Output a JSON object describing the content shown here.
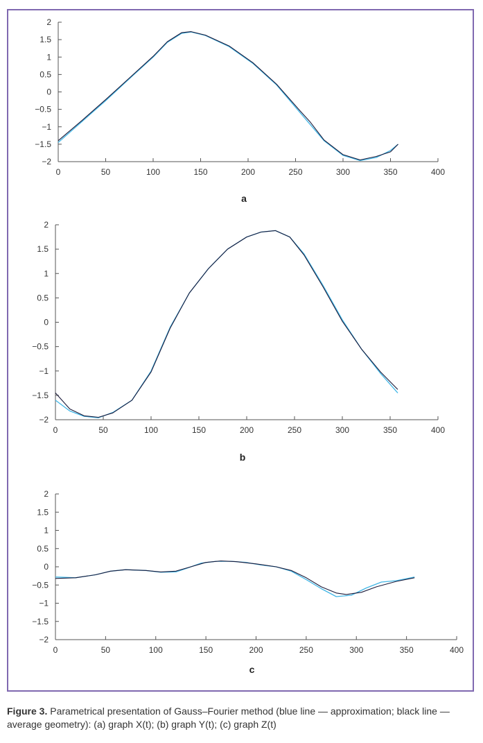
{
  "caption": {
    "label": "Figure 3.",
    "text": "Parametrical presentation of Gauss–Fourier method (blue line — approximation; black line — average geometry): (a) graph X(t); (b) graph Y(t); (c) graph Z(t)"
  },
  "colors": {
    "frame": "#7f68b0",
    "approximation": "#41b6e6",
    "average": "#1a1a3a",
    "axis": "#555555"
  },
  "chart_data": [
    {
      "type": "line",
      "panel_label": "a",
      "xlim": [
        0,
        400
      ],
      "ylim": [
        -2,
        2
      ],
      "xticks": [
        0,
        50,
        100,
        150,
        200,
        250,
        300,
        350,
        400
      ],
      "yticks": [
        2,
        1.5,
        1,
        0.5,
        0,
        -0.5,
        -1,
        -1.5,
        -2
      ],
      "ytick_labels": [
        "2",
        "1.5",
        "1",
        "0.5",
        "0",
        "−0.5",
        "−1",
        "−1.5",
        "−2"
      ],
      "series": [
        {
          "x": [
            0,
            25,
            50,
            75,
            100,
            115,
            130,
            140,
            155,
            180,
            205,
            230,
            255,
            280,
            300,
            318,
            335,
            350,
            358
          ],
          "y": [
            -1.45,
            -0.85,
            -0.25,
            0.38,
            1.0,
            1.42,
            1.68,
            1.72,
            1.62,
            1.3,
            0.82,
            0.2,
            -0.6,
            -1.4,
            -1.82,
            -1.97,
            -1.88,
            -1.68,
            -1.5
          ]
        },
        {
          "x": [
            0,
            25,
            50,
            75,
            100,
            115,
            130,
            140,
            155,
            180,
            205,
            230,
            255,
            265,
            280,
            300,
            318,
            335,
            350,
            358
          ],
          "y": [
            -1.4,
            -0.82,
            -0.22,
            0.4,
            1.02,
            1.44,
            1.7,
            1.73,
            1.63,
            1.32,
            0.84,
            0.22,
            -0.55,
            -0.85,
            -1.38,
            -1.8,
            -1.95,
            -1.85,
            -1.72,
            -1.5
          ]
        }
      ]
    },
    {
      "type": "line",
      "panel_label": "b",
      "xlim": [
        0,
        400
      ],
      "ylim": [
        -2,
        2
      ],
      "xticks": [
        0,
        50,
        100,
        150,
        200,
        250,
        300,
        350,
        400
      ],
      "yticks": [
        2,
        1.5,
        1,
        0.5,
        0,
        -0.5,
        -1,
        -1.5,
        -2
      ],
      "ytick_labels": [
        "2",
        "1.5",
        "1",
        "0.5",
        "0",
        "−0.5",
        "−1",
        "−1.5",
        "−2"
      ],
      "series": [
        {
          "x": [
            0,
            15,
            30,
            45,
            60,
            80,
            100,
            120,
            140,
            160,
            180,
            200,
            215,
            230,
            245,
            260,
            280,
            300,
            320,
            340,
            358
          ],
          "y": [
            -1.6,
            -1.82,
            -1.93,
            -1.96,
            -1.85,
            -1.6,
            -1.0,
            -0.1,
            0.6,
            1.1,
            1.5,
            1.75,
            1.85,
            1.88,
            1.75,
            1.4,
            0.75,
            0.05,
            -0.55,
            -1.05,
            -1.45
          ]
        },
        {
          "x": [
            0,
            15,
            30,
            45,
            60,
            80,
            100,
            120,
            140,
            160,
            180,
            200,
            215,
            230,
            245,
            260,
            280,
            300,
            320,
            340,
            358
          ],
          "y": [
            -1.45,
            -1.78,
            -1.92,
            -1.95,
            -1.86,
            -1.6,
            -1.02,
            -0.12,
            0.6,
            1.1,
            1.5,
            1.75,
            1.85,
            1.88,
            1.75,
            1.38,
            0.72,
            0.02,
            -0.55,
            -1.02,
            -1.38
          ]
        }
      ]
    },
    {
      "type": "line",
      "panel_label": "c",
      "xlim": [
        0,
        400
      ],
      "ylim": [
        -2,
        2
      ],
      "xticks": [
        0,
        50,
        100,
        150,
        200,
        250,
        300,
        350,
        400
      ],
      "yticks": [
        2,
        1.5,
        1,
        0.5,
        0,
        -0.5,
        -1,
        -1.5,
        -2
      ],
      "ytick_labels": [
        "2",
        "1.5",
        "1",
        "0.5",
        "0",
        "−0.5",
        "−1",
        "−1.5",
        "−2"
      ],
      "series": [
        {
          "x": [
            0,
            20,
            40,
            55,
            70,
            90,
            105,
            120,
            130,
            145,
            160,
            175,
            190,
            205,
            220,
            235,
            250,
            265,
            280,
            295,
            310,
            325,
            340,
            358
          ],
          "y": [
            -0.28,
            -0.3,
            -0.22,
            -0.12,
            -0.08,
            -0.1,
            -0.15,
            -0.14,
            -0.05,
            0.1,
            0.15,
            0.15,
            0.12,
            0.05,
            0.0,
            -0.12,
            -0.35,
            -0.6,
            -0.82,
            -0.78,
            -0.58,
            -0.42,
            -0.38,
            -0.28
          ]
        },
        {
          "x": [
            0,
            20,
            40,
            55,
            70,
            90,
            105,
            120,
            135,
            150,
            165,
            180,
            200,
            220,
            235,
            250,
            265,
            280,
            290,
            305,
            320,
            340,
            358
          ],
          "y": [
            -0.32,
            -0.3,
            -0.22,
            -0.12,
            -0.08,
            -0.1,
            -0.14,
            -0.12,
            0.0,
            0.12,
            0.16,
            0.14,
            0.08,
            0.0,
            -0.1,
            -0.3,
            -0.55,
            -0.72,
            -0.76,
            -0.7,
            -0.55,
            -0.4,
            -0.3
          ]
        }
      ]
    }
  ]
}
